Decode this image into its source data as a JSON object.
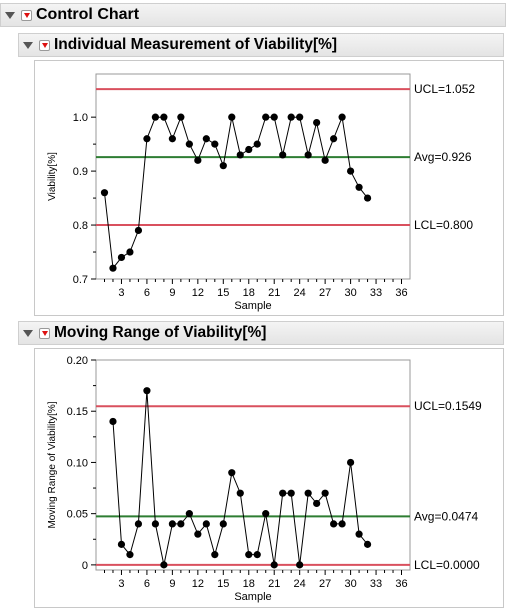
{
  "main_title": "Control Chart",
  "charts": [
    {
      "title": "Individual Measurement of Viability[%]",
      "ucl_label": "UCL=1.052",
      "avg_label": "Avg=0.926",
      "lcl_label": "LCL=0.800"
    },
    {
      "title": "Moving Range of Viability[%]",
      "ucl_label": "UCL=0.1549",
      "avg_label": "Avg=0.0474",
      "lcl_label": "LCL=0.0000"
    }
  ],
  "colors": {
    "limit": "#d9505e",
    "center": "#2e7d32",
    "point": "#000000"
  },
  "chart_data": [
    {
      "type": "line",
      "title": "Individual Measurement of Viability[%]",
      "xlabel": "Sample",
      "ylabel": "Viability[%]",
      "xlim": [
        0,
        37
      ],
      "ylim": [
        0.7,
        1.08
      ],
      "xticks": [
        3,
        6,
        9,
        12,
        15,
        18,
        21,
        24,
        27,
        30,
        33,
        36
      ],
      "yticks": [
        0.7,
        0.8,
        0.9,
        1.0
      ],
      "ytick_labels": [
        "0.7",
        "0.8",
        "0.9",
        "1.0"
      ],
      "x": [
        1,
        2,
        3,
        4,
        5,
        6,
        7,
        8,
        9,
        10,
        11,
        12,
        13,
        14,
        15,
        16,
        17,
        18,
        19,
        20,
        21,
        22,
        23,
        24,
        25,
        26,
        27,
        28,
        29,
        30,
        31,
        32
      ],
      "values": [
        0.86,
        0.72,
        0.74,
        0.75,
        0.79,
        0.96,
        1.0,
        1.0,
        0.96,
        1.0,
        0.95,
        0.92,
        0.96,
        0.95,
        0.91,
        1.0,
        0.93,
        0.94,
        0.95,
        1.0,
        1.0,
        0.93,
        1.0,
        1.0,
        0.93,
        0.99,
        0.92,
        0.96,
        1.0,
        0.9,
        0.87,
        0.85
      ],
      "ucl": 1.052,
      "avg": 0.926,
      "lcl": 0.8
    },
    {
      "type": "line",
      "title": "Moving Range of Viability[%]",
      "xlabel": "Sample",
      "ylabel": "Moving Range of Viability[%]",
      "xlim": [
        0,
        37
      ],
      "ylim": [
        -0.005,
        0.2
      ],
      "xticks": [
        3,
        6,
        9,
        12,
        15,
        18,
        21,
        24,
        27,
        30,
        33,
        36
      ],
      "yticks": [
        0,
        0.05,
        0.1,
        0.15,
        0.2
      ],
      "ytick_labels": [
        "0",
        "0.05",
        "0.10",
        "0.15",
        "0.20"
      ],
      "x": [
        2,
        3,
        4,
        5,
        6,
        7,
        8,
        9,
        10,
        11,
        12,
        13,
        14,
        15,
        16,
        17,
        18,
        19,
        20,
        21,
        22,
        23,
        24,
        25,
        26,
        27,
        28,
        29,
        30,
        31,
        32
      ],
      "values": [
        0.14,
        0.02,
        0.01,
        0.04,
        0.17,
        0.04,
        0.0,
        0.04,
        0.04,
        0.05,
        0.03,
        0.04,
        0.01,
        0.04,
        0.09,
        0.07,
        0.01,
        0.01,
        0.05,
        0.0,
        0.07,
        0.07,
        0.0,
        0.07,
        0.06,
        0.07,
        0.04,
        0.04,
        0.1,
        0.03,
        0.02
      ],
      "ucl": 0.1549,
      "avg": 0.0474,
      "lcl": 0.0
    }
  ]
}
